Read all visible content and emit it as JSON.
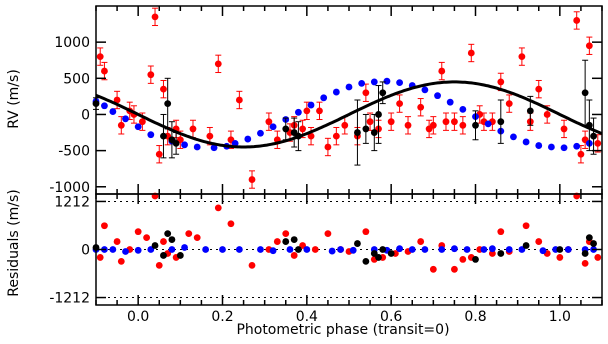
{
  "chart_data": [
    {
      "type": "scatter",
      "panel": "rv",
      "ylabel": "RV (m/s)",
      "xlim": [
        -0.1,
        1.1
      ],
      "ylim": [
        -1100,
        1500
      ],
      "yticks": [
        -1000,
        -500,
        0,
        500,
        1000
      ],
      "model": {
        "type": "sine",
        "amplitude": 450,
        "phase_of_max": 0.75,
        "color": "#000000"
      },
      "series": [
        {
          "color": "#ff0000",
          "x": [
            -0.09,
            -0.08,
            -0.05,
            -0.04,
            -0.02,
            -0.01,
            0.01,
            0.03,
            0.04,
            0.05,
            0.06,
            0.07,
            0.09,
            0.1,
            0.13,
            0.17,
            0.19,
            0.22,
            0.24,
            0.27,
            0.31,
            0.33,
            0.36,
            0.37,
            0.39,
            0.4,
            0.41,
            0.43,
            0.45,
            0.47,
            0.49,
            0.52,
            0.54,
            0.55,
            0.57,
            0.6,
            0.62,
            0.64,
            0.67,
            0.69,
            0.7,
            0.72,
            0.73,
            0.75,
            0.77,
            0.79,
            0.81,
            0.82,
            0.84,
            0.86,
            0.88,
            0.91,
            0.93,
            0.95,
            0.97,
            1.01,
            1.04,
            1.05,
            1.06,
            1.07,
            1.09
          ],
          "y": [
            800,
            600,
            200,
            -150,
            50,
            0,
            -100,
            550,
            1350,
            -550,
            350,
            -300,
            -200,
            -350,
            -200,
            -300,
            700,
            -350,
            200,
            -900,
            -100,
            -350,
            -250,
            -150,
            -200,
            50,
            -300,
            50,
            -450,
            -300,
            -150,
            -300,
            300,
            -100,
            -200,
            -100,
            150,
            -150,
            100,
            -200,
            -150,
            600,
            -100,
            -100,
            -150,
            850,
            0,
            -100,
            -100,
            450,
            150,
            800,
            -100,
            350,
            0,
            -200,
            1300,
            -550,
            -350,
            950,
            -400
          ]
        },
        {
          "color": "#0000ff",
          "x": [
            -0.1,
            -0.08,
            -0.06,
            -0.03,
            0.0,
            0.03,
            0.08,
            0.11,
            0.14,
            0.18,
            0.21,
            0.23,
            0.26,
            0.29,
            0.32,
            0.35,
            0.38,
            0.41,
            0.44,
            0.47,
            0.5,
            0.53,
            0.56,
            0.59,
            0.62,
            0.65,
            0.68,
            0.71,
            0.74,
            0.77,
            0.8,
            0.83,
            0.86,
            0.89,
            0.92,
            0.95,
            0.98,
            1.01,
            1.04,
            1.07
          ],
          "y": [
            180,
            120,
            40,
            -60,
            -170,
            -280,
            -370,
            -420,
            -450,
            -460,
            -440,
            -400,
            -340,
            -260,
            -170,
            -70,
            30,
            130,
            230,
            310,
            380,
            430,
            450,
            460,
            440,
            400,
            340,
            260,
            170,
            70,
            -30,
            -130,
            -230,
            -310,
            -380,
            -430,
            -450,
            -460,
            -440,
            -400
          ]
        },
        {
          "color": "#000000",
          "x": [
            -0.1,
            0.06,
            0.07,
            0.08,
            0.09,
            0.35,
            0.37,
            0.38,
            0.52,
            0.54,
            0.56,
            0.57,
            0.58,
            0.8,
            0.86,
            0.93,
            1.06,
            1.07,
            1.08
          ],
          "y": [
            150,
            -300,
            150,
            -350,
            -400,
            -200,
            -250,
            -300,
            -250,
            -200,
            -250,
            0,
            300,
            -150,
            -100,
            50,
            300,
            -150,
            -300
          ],
          "yerr": [
            80,
            300,
            350,
            250,
            150,
            150,
            200,
            200,
            450,
            200,
            250,
            400,
            150,
            200,
            300,
            200,
            450,
            350,
            250
          ]
        }
      ]
    },
    {
      "type": "scatter",
      "panel": "residuals",
      "xlabel": "Photometric phase (transit=0)",
      "ylabel": "Residuals (m/s)",
      "xlim": [
        -0.1,
        1.1
      ],
      "ylim": [
        -1400,
        1400
      ],
      "yticks": [
        -1212,
        0,
        1212
      ],
      "xticks": [
        "0.0",
        "0.2",
        "0.4",
        "0.6",
        "0.8",
        "1.0"
      ],
      "series": [
        {
          "color": "#ff0000",
          "x": [
            -0.09,
            -0.08,
            -0.05,
            -0.04,
            -0.02,
            0.0,
            0.02,
            0.04,
            0.05,
            0.06,
            0.07,
            0.09,
            0.12,
            0.14,
            0.19,
            0.22,
            0.27,
            0.31,
            0.33,
            0.35,
            0.37,
            0.39,
            0.42,
            0.45,
            0.48,
            0.5,
            0.54,
            0.56,
            0.58,
            0.61,
            0.64,
            0.67,
            0.7,
            0.72,
            0.75,
            0.77,
            0.79,
            0.81,
            0.84,
            0.86,
            0.88,
            0.92,
            0.95,
            0.97,
            1.0,
            1.02,
            1.04,
            1.06,
            1.07,
            1.09
          ],
          "y": [
            -200,
            600,
            200,
            -300,
            0,
            450,
            300,
            1400,
            -400,
            200,
            -100,
            -200,
            400,
            300,
            1050,
            650,
            -400,
            0,
            200,
            400,
            -150,
            100,
            0,
            400,
            0,
            -50,
            450,
            -250,
            -200,
            -100,
            -50,
            200,
            -500,
            100,
            -500,
            -250,
            -200,
            0,
            -100,
            450,
            -50,
            600,
            200,
            -100,
            -200,
            0,
            1400,
            -350,
            200,
            -200
          ]
        },
        {
          "color": "#0000ff",
          "x": [
            -0.1,
            -0.08,
            -0.06,
            -0.03,
            0.0,
            0.03,
            0.08,
            0.11,
            0.16,
            0.2,
            0.24,
            0.29,
            0.32,
            0.36,
            0.4,
            0.46,
            0.48,
            0.51,
            0.56,
            0.59,
            0.62,
            0.65,
            0.68,
            0.72,
            0.75,
            0.78,
            0.82,
            0.84,
            0.88,
            0.91,
            0.96,
            0.99,
            1.02,
            1.06,
            1.08
          ],
          "y": [
            0,
            0,
            0,
            -50,
            -20,
            0,
            0,
            50,
            0,
            0,
            0,
            0,
            -30,
            0,
            0,
            -40,
            0,
            -20,
            0,
            -20,
            20,
            0,
            0,
            0,
            20,
            0,
            0,
            20,
            0,
            0,
            -30,
            0,
            0,
            0,
            0
          ]
        },
        {
          "color": "#000000",
          "x": [
            -0.1,
            0.04,
            0.06,
            0.07,
            0.08,
            0.1,
            0.35,
            0.37,
            0.38,
            0.52,
            0.54,
            0.56,
            0.57,
            0.58,
            0.6,
            0.8,
            0.86,
            0.92,
            1.0,
            1.06,
            1.07,
            1.08
          ],
          "y": [
            50,
            100,
            -150,
            400,
            250,
            -150,
            200,
            250,
            0,
            150,
            -300,
            -100,
            -200,
            0,
            -100,
            -250,
            -100,
            100,
            0,
            -100,
            300,
            150
          ]
        }
      ]
    }
  ]
}
